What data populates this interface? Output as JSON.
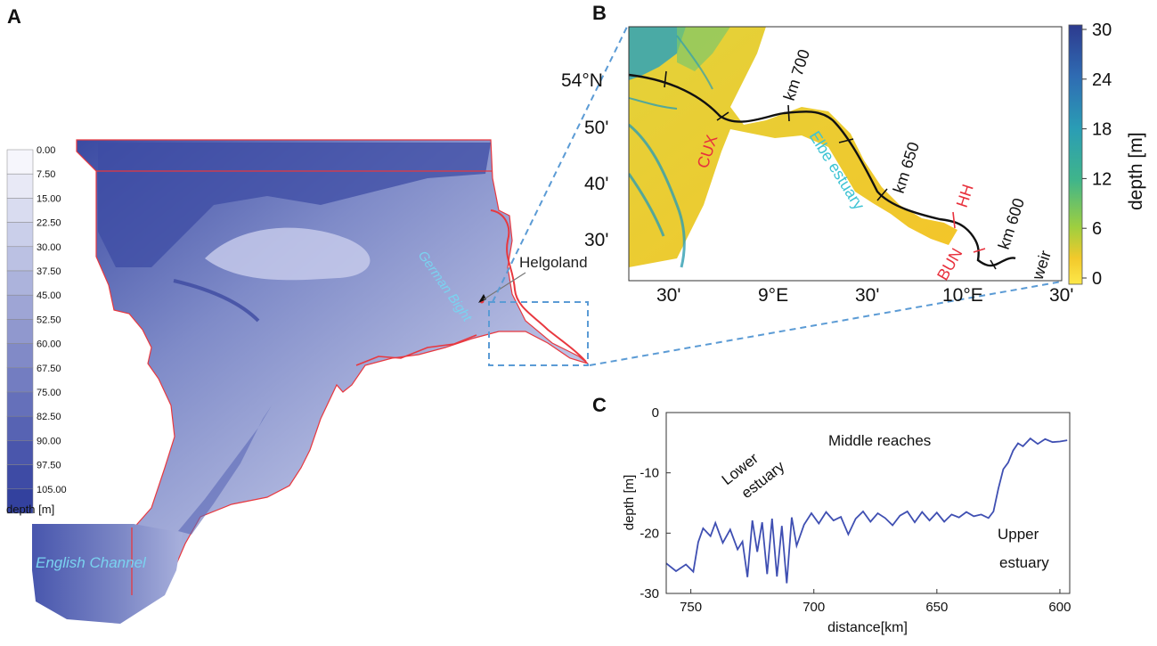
{
  "panels": {
    "a": {
      "letter": "A"
    },
    "b": {
      "letter": "B"
    },
    "c": {
      "letter": "C"
    }
  },
  "map_a": {
    "legend_ticks": [
      "0.00",
      "7.50",
      "15.00",
      "22.50",
      "30.00",
      "37.50",
      "45.00",
      "52.50",
      "60.00",
      "67.50",
      "75.00",
      "82.50",
      "90.00",
      "97.50",
      "105.00"
    ],
    "legend_colors": [
      "#f6f6fc",
      "#e8e9f6",
      "#d9dcf0",
      "#cacfea",
      "#bbc1e3",
      "#acb3dc",
      "#9ea5d5",
      "#9098ce",
      "#818ac7",
      "#737dc1",
      "#6570ba",
      "#5763b3",
      "#4a56ac",
      "#3e4ba5",
      "#33419e"
    ],
    "legend_label": "depth [m]",
    "labels": {
      "german_bight": "German Bight",
      "helgoland": "Helgoland",
      "english_channel": "English Channel"
    }
  },
  "map_b": {
    "lat_ticks": [
      "54°N",
      "50'",
      "40'",
      "30'"
    ],
    "lon_ticks": [
      "30'",
      "9°E",
      "30'",
      "10°E",
      "30'"
    ],
    "km_labels": [
      "km 700",
      "km 650",
      "km 600"
    ],
    "place_labels": {
      "cux": "CUX",
      "hh": "HH",
      "bun": "BUN",
      "weir": "weir",
      "estuary": "Elbe estuary"
    },
    "colorbar": {
      "ticks": [
        "30",
        "24",
        "18",
        "12",
        "6",
        "0"
      ],
      "label": "depth [m]"
    },
    "colors": {
      "cities": "#e8303c",
      "estuary": "#3ec3d3"
    }
  },
  "chart_data": {
    "type": "line",
    "title": "",
    "xlabel": "distance[km]",
    "ylabel": "depth [m]",
    "xlim": [
      760,
      596
    ],
    "ylim": [
      -30,
      0
    ],
    "x_ticks": [
      750,
      700,
      650,
      600
    ],
    "y_ticks": [
      0,
      -10,
      -20,
      -30
    ],
    "annotations": {
      "lower_1": "Lower",
      "lower_2": "estuary",
      "middle": "Middle reaches",
      "upper_1": "Upper",
      "upper_2": "estuary"
    },
    "series": [
      {
        "color": "#3f4fb2",
        "x": [
          760,
          756,
          752,
          749,
          747,
          745,
          742,
          740,
          737,
          734,
          731,
          729,
          727,
          725,
          723,
          721,
          719,
          717,
          715,
          713,
          711,
          709,
          707,
          704,
          701,
          698,
          695,
          692,
          689,
          686,
          683,
          680,
          677,
          674,
          671,
          668,
          665,
          662,
          659,
          656,
          653,
          650,
          647,
          644,
          641,
          638,
          635,
          632,
          629,
          627,
          625,
          623,
          621,
          619,
          617,
          615,
          612,
          609,
          606,
          603,
          600,
          597
        ],
        "y": [
          -25,
          -26.3,
          -25.2,
          -26.4,
          -21.5,
          -19.2,
          -20.5,
          -18.3,
          -21.6,
          -19.4,
          -22.7,
          -21.4,
          -27.3,
          -17.9,
          -23.1,
          -18.2,
          -26.8,
          -17.6,
          -27.2,
          -18.8,
          -28.3,
          -17.4,
          -22.1,
          -18.6,
          -16.7,
          -18.4,
          -16.5,
          -17.9,
          -17.3,
          -20.2,
          -17.6,
          -16.4,
          -18.1,
          -16.7,
          -17.5,
          -18.7,
          -17.1,
          -16.4,
          -18.2,
          -16.5,
          -17.9,
          -16.6,
          -18.1,
          -16.9,
          -17.4,
          -16.5,
          -17.2,
          -16.9,
          -17.5,
          -16.4,
          -12.6,
          -9.4,
          -8.3,
          -6.3,
          -5.1,
          -5.6,
          -4.3,
          -5.2,
          -4.4,
          -4.9,
          -4.8,
          -4.6
        ]
      }
    ]
  }
}
